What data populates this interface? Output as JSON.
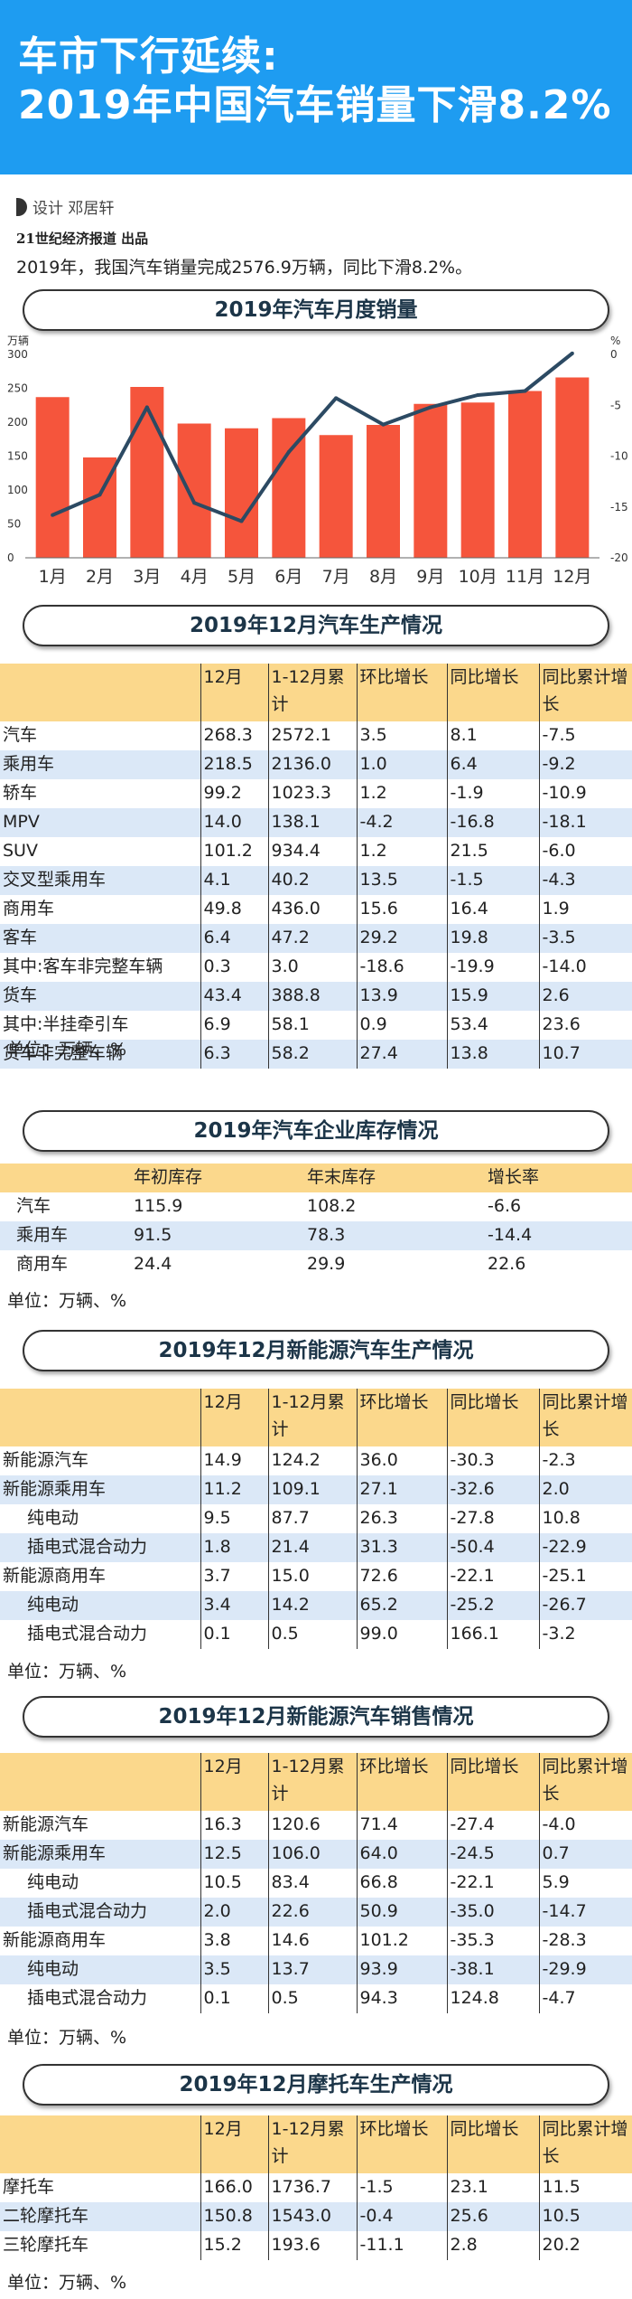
{
  "header": {
    "title_line1": "车市下行延续:",
    "title_line2": "2019年中国汽车销量下滑8.2%"
  },
  "byline": "设计  邓居轩",
  "publisher": "21世纪经济报道  出品",
  "summary": "2019年，我国汽车销量完成2576.9万辆，同比下滑8.2%。",
  "colors": {
    "banner": "#1e9cf1",
    "bar": "#f5553c",
    "line": "#2c4a63",
    "header_row": "#fbd88c",
    "alt_row": "#dbe8f7"
  },
  "chart_data": {
    "type": "bar",
    "title": "2019年汽车月度销量",
    "categories": [
      "1月",
      "2月",
      "3月",
      "4月",
      "5月",
      "6月",
      "7月",
      "8月",
      "9月",
      "10月",
      "11月",
      "12月"
    ],
    "ylabel_left": "万辆",
    "ylabel_right": "%",
    "ylim_left": [
      0,
      300
    ],
    "yticks_left": [
      "0",
      "50",
      "100",
      "150",
      "200",
      "250",
      "300"
    ],
    "ylim_right": [
      -20,
      0
    ],
    "yticks_right": [
      "0",
      "-5",
      "-10",
      "-15",
      "-20"
    ],
    "series": [
      {
        "type": "bar",
        "axis": "left",
        "values": [
          237,
          148,
          252,
          198,
          191,
          206,
          181,
          196,
          227,
          229,
          246,
          266
        ]
      },
      {
        "type": "line",
        "axis": "right",
        "values": [
          -15.8,
          -13.8,
          -5.2,
          -14.6,
          -16.4,
          -9.6,
          -4.3,
          -6.9,
          -5.2,
          -4.0,
          -3.6,
          0.1
        ]
      }
    ]
  },
  "table1": {
    "title": "2019年12月汽车生产情况",
    "columns": [
      "",
      "12月",
      "1-12月累计",
      "环比增长",
      "同比增长",
      "同比累计增长"
    ],
    "rows": [
      [
        "汽车",
        "268.3",
        "2572.1",
        "3.5",
        "8.1",
        "-7.5"
      ],
      [
        "乘用车",
        "218.5",
        "2136.0",
        "1.0",
        "6.4",
        "-9.2"
      ],
      [
        "轿车",
        "99.2",
        "1023.3",
        "1.2",
        "-1.9",
        "-10.9"
      ],
      [
        "MPV",
        "14.0",
        "138.1",
        "-4.2",
        "-16.8",
        "-18.1"
      ],
      [
        "SUV",
        "101.2",
        "934.4",
        "1.2",
        "21.5",
        "-6.0"
      ],
      [
        "交叉型乘用车",
        "4.1",
        "40.2",
        "13.5",
        "-1.5",
        "-4.3"
      ],
      [
        "商用车",
        "49.8",
        "436.0",
        "15.6",
        "16.4",
        "1.9"
      ],
      [
        "客车",
        "6.4",
        "47.2",
        "29.2",
        "19.8",
        "-3.5"
      ],
      [
        "其中:客车非完整车辆",
        "0.3",
        "3.0",
        "-18.6",
        "-19.9",
        "-14.0"
      ],
      [
        "货车",
        "43.4",
        "388.8",
        "13.9",
        "15.9",
        "2.6"
      ],
      [
        "其中:半挂牵引车",
        "6.9",
        "58.1",
        "0.9",
        "53.4",
        "23.6"
      ],
      [
        "货车非完整车辆",
        "6.3",
        "58.2",
        "27.4",
        "13.8",
        "10.7"
      ]
    ],
    "unit": "单位：万辆、%"
  },
  "table2": {
    "title": "2019年汽车企业库存情况",
    "columns": [
      "",
      "年初库存",
      "年末库存",
      "增长率"
    ],
    "rows": [
      [
        "汽车",
        "115.9",
        "108.2",
        "-6.6"
      ],
      [
        "乘用车",
        "91.5",
        "78.3",
        "-14.4"
      ],
      [
        "商用车",
        "24.4",
        "29.9",
        "22.6"
      ]
    ],
    "unit": "单位：万辆、%"
  },
  "table3": {
    "title": "2019年12月新能源汽车生产情况",
    "columns": [
      "",
      "12月",
      "1-12月累计",
      "环比增长",
      "同比增长",
      "同比累计增长"
    ],
    "rows": [
      [
        "新能源汽车",
        "14.9",
        "124.2",
        "36.0",
        "-30.3",
        "-2.3"
      ],
      [
        "新能源乘用车",
        "11.2",
        "109.1",
        "27.1",
        "-32.6",
        "2.0"
      ],
      [
        "纯电动",
        "9.5",
        "87.7",
        "26.3",
        "-27.8",
        "10.8"
      ],
      [
        "插电式混合动力",
        "1.8",
        "21.4",
        "31.3",
        "-50.4",
        "-22.9"
      ],
      [
        "新能源商用车",
        "3.7",
        "15.0",
        "72.6",
        "-22.1",
        "-25.1"
      ],
      [
        "纯电动",
        "3.4",
        "14.2",
        "65.2",
        "-25.2",
        "-26.7"
      ],
      [
        "插电式混合动力",
        "0.1",
        "0.5",
        "99.0",
        "166.1",
        "-3.2"
      ]
    ],
    "unit": "单位：万辆、%"
  },
  "table4": {
    "title": "2019年12月新能源汽车销售情况",
    "columns": [
      "",
      "12月",
      "1-12月累计",
      "环比增长",
      "同比增长",
      "同比累计增长"
    ],
    "rows": [
      [
        "新能源汽车",
        "16.3",
        "120.6",
        "71.4",
        "-27.4",
        "-4.0"
      ],
      [
        "新能源乘用车",
        "12.5",
        "106.0",
        "64.0",
        "-24.5",
        "0.7"
      ],
      [
        "纯电动",
        "10.5",
        "83.4",
        "66.8",
        "-22.1",
        "5.9"
      ],
      [
        "插电式混合动力",
        "2.0",
        "22.6",
        "50.9",
        "-35.0",
        "-14.7"
      ],
      [
        "新能源商用车",
        "3.8",
        "14.6",
        "101.2",
        "-35.3",
        "-28.3"
      ],
      [
        "纯电动",
        "3.5",
        "13.7",
        "93.9",
        "-38.1",
        "-29.9"
      ],
      [
        "插电式混合动力",
        "0.1",
        "0.5",
        "94.3",
        "124.8",
        "-4.7"
      ]
    ],
    "unit": "单位：万辆、%"
  },
  "table5": {
    "title": "2019年12月摩托车生产情况",
    "columns": [
      "",
      "12月",
      "1-12月累计",
      "环比增长",
      "同比增长",
      "同比累计增长"
    ],
    "rows": [
      [
        "摩托车",
        "166.0",
        "1736.7",
        "-1.5",
        "23.1",
        "11.5"
      ],
      [
        "二轮摩托车",
        "150.8",
        "1543.0",
        "-0.4",
        "25.6",
        "10.5"
      ],
      [
        "三轮摩托车",
        "15.2",
        "193.6",
        "-11.1",
        "2.8",
        "20.2"
      ]
    ],
    "unit": "单位：万辆、%"
  }
}
